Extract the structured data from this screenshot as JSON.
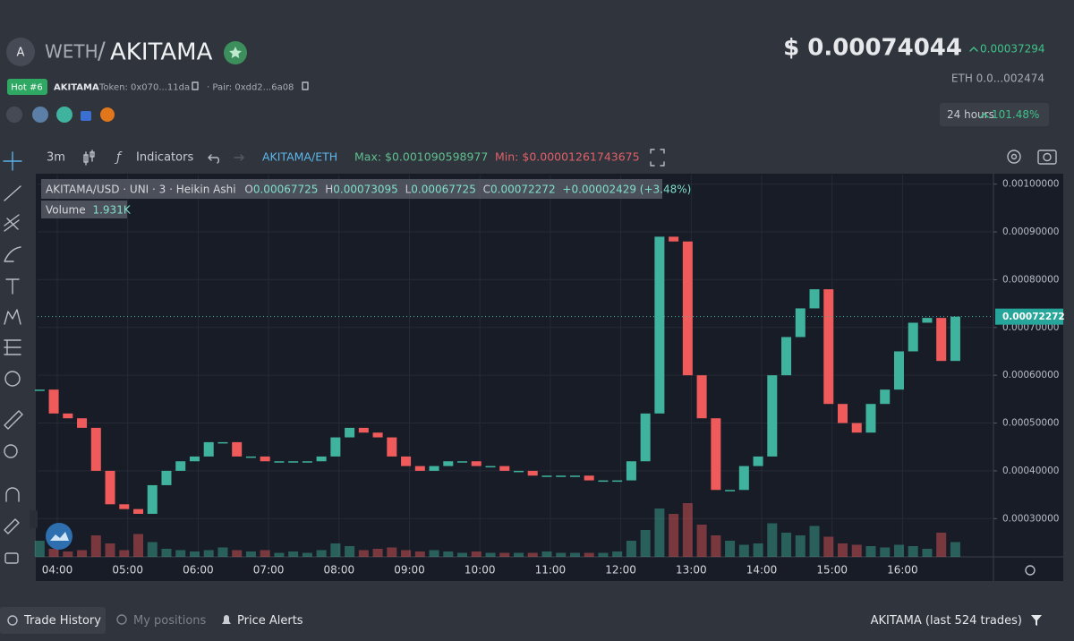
{
  "header": {
    "avatar": "A",
    "base": "WETH",
    "separator": "/",
    "token_name": "AKITAMA",
    "badge": "Hot #6",
    "symbol": "AKITAMA",
    "token_address": "Token: 0x070...11da",
    "pair_address": "· Pair: 0xdd2...6a08",
    "price": "$ 0.00074044",
    "price_change": "0.00037294",
    "eth_price": "ETH  0.0...002474",
    "period": "24 hours",
    "period_change": "101.48%"
  },
  "toolbar": {
    "interval": "3m",
    "indicators": "Indicators",
    "pair": "AKITAMA/ETH",
    "max": "Max: $0.001090598977",
    "min": "Min: $0.00001261743675"
  },
  "chart_data": {
    "type": "candlestick",
    "title": "AKITAMA/USD · UNI · 3 · Heikin Ashi",
    "ohlc": {
      "open": 0.00067725,
      "high": 0.00073095,
      "low": 0.00067725,
      "close": 0.00072272,
      "change": "+0.00002429 (+3.48%)"
    },
    "volume_label": "Volume",
    "volume_value": "1.931K",
    "up_color": "#3fb39e",
    "down_color": "#ef5a5a",
    "x": [
      "03:45",
      "03:57",
      "04:09",
      "04:21",
      "04:33",
      "04:45",
      "04:57",
      "05:09",
      "05:21",
      "05:33",
      "05:45",
      "05:57",
      "06:09",
      "06:21",
      "06:33",
      "06:45",
      "06:57",
      "07:09",
      "07:21",
      "07:33",
      "07:45",
      "07:57",
      "08:09",
      "08:21",
      "08:33",
      "08:45",
      "08:57",
      "09:09",
      "09:21",
      "09:33",
      "09:45",
      "09:57",
      "10:09",
      "10:21",
      "10:33",
      "10:45",
      "10:57",
      "11:09",
      "11:21",
      "11:33",
      "11:45",
      "11:57",
      "12:09",
      "12:21",
      "12:33",
      "12:45",
      "12:57",
      "13:09",
      "13:21",
      "13:33",
      "13:45",
      "13:57",
      "14:09",
      "14:21",
      "14:33",
      "14:45",
      "14:57",
      "15:09",
      "15:21",
      "15:33",
      "15:45",
      "15:57",
      "16:09",
      "16:21",
      "16:33",
      "16:45"
    ],
    "values": [
      0.00057,
      0.00052,
      0.00051,
      0.00049,
      0.0004,
      0.00033,
      0.00032,
      0.00031,
      0.00037,
      0.0004,
      0.00042,
      0.00043,
      0.00046,
      0.00046,
      0.00043,
      0.00043,
      0.00042,
      0.00042,
      0.00042,
      0.00042,
      0.00043,
      0.00047,
      0.00049,
      0.00048,
      0.00047,
      0.00043,
      0.00041,
      0.0004,
      0.00041,
      0.00042,
      0.00042,
      0.00041,
      0.00041,
      0.0004,
      0.0004,
      0.00039,
      0.00039,
      0.00039,
      0.00039,
      0.00038,
      0.00038,
      0.00038,
      0.00042,
      0.00052,
      0.00089,
      0.00088,
      0.0006,
      0.00051,
      0.00036,
      0.00036,
      0.00041,
      0.00043,
      0.0006,
      0.00068,
      0.00074,
      0.00078,
      0.00054,
      0.0005,
      0.00048,
      0.00054,
      0.00057,
      0.00065,
      0.00071,
      0.00072,
      0.00063,
      0.00072272
    ],
    "volume": [
      1.2,
      0.6,
      0.4,
      0.5,
      1.6,
      1.0,
      0.5,
      1.7,
      1.1,
      0.6,
      0.5,
      0.4,
      0.5,
      0.7,
      0.5,
      0.4,
      0.5,
      0.3,
      0.4,
      0.3,
      0.5,
      1.0,
      0.8,
      0.5,
      0.6,
      0.7,
      0.5,
      0.4,
      0.5,
      0.4,
      0.3,
      0.4,
      0.3,
      0.3,
      0.3,
      0.3,
      0.4,
      0.3,
      0.3,
      0.3,
      0.3,
      0.4,
      1.2,
      2.0,
      3.6,
      3.2,
      4.0,
      2.4,
      1.6,
      1.2,
      0.9,
      1.0,
      2.5,
      1.8,
      1.6,
      2.3,
      1.5,
      1.0,
      0.9,
      0.8,
      0.7,
      0.9,
      0.8,
      0.6,
      1.8,
      1.1
    ],
    "ylim": [
      0.00022,
      0.00102
    ],
    "yticks": [
      {
        "value": 0.001,
        "label": "0.00100000"
      },
      {
        "value": 0.0009,
        "label": "0.00090000"
      },
      {
        "value": 0.0008,
        "label": "0.00080000"
      },
      {
        "value": 0.0007,
        "label": "0.00070000"
      },
      {
        "value": 0.0006,
        "label": "0.00060000"
      },
      {
        "value": 0.0005,
        "label": "0.00050000"
      },
      {
        "value": 0.0004,
        "label": "0.00040000"
      },
      {
        "value": 0.0003,
        "label": "0.00030000"
      }
    ],
    "xticks": [
      "04:00",
      "05:00",
      "06:00",
      "07:00",
      "08:00",
      "09:00",
      "10:00",
      "11:00",
      "12:00",
      "13:00",
      "14:00",
      "15:00",
      "16:00"
    ],
    "grid": true
  },
  "footer": {
    "tabs": [
      "Trade History",
      "My positions",
      "Price Alerts"
    ],
    "trades": "AKITAMA (last 524 trades)"
  }
}
